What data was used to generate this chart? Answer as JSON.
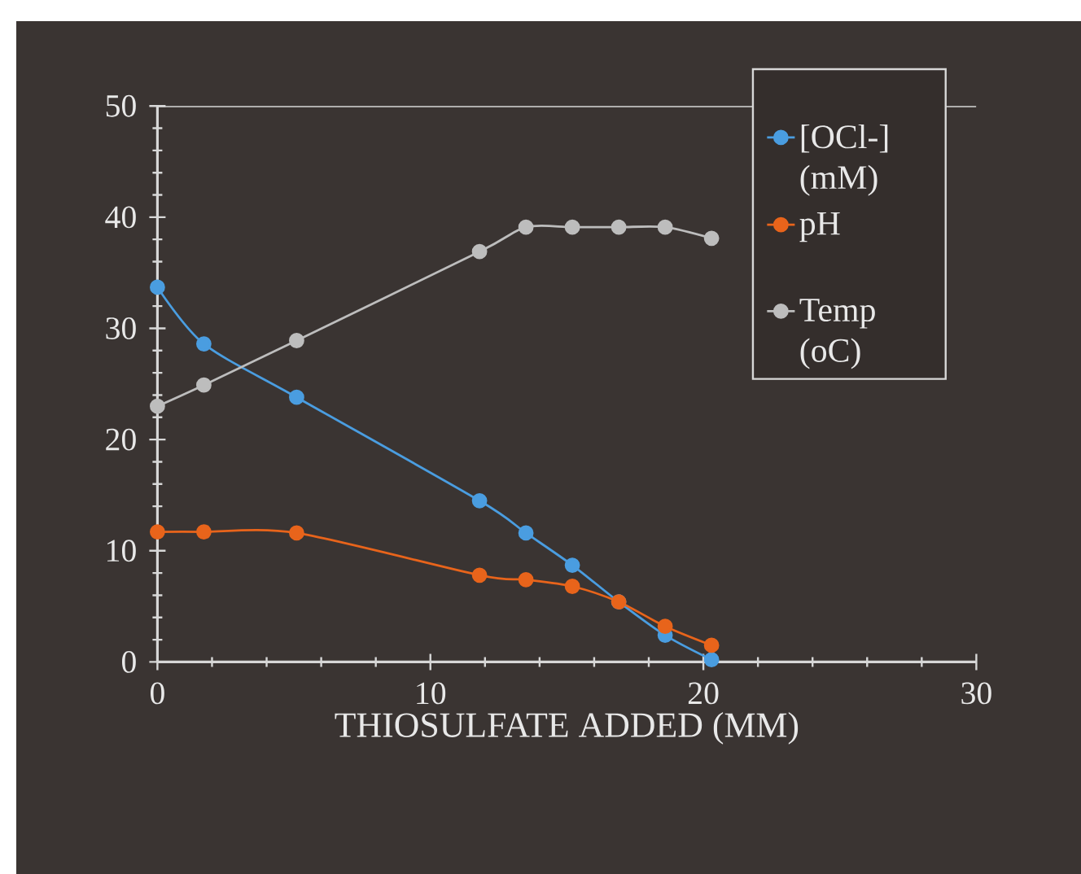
{
  "chart_data": {
    "type": "line",
    "xlabel": "THIOSULFATE ADDED (MM)",
    "x": [
      0,
      1.7,
      5.1,
      11.8,
      13.5,
      15.2,
      16.9,
      18.6,
      20.3
    ],
    "series": [
      {
        "name": "[OCl-] (mM)",
        "color": "#4a9de0",
        "values": [
          33.7,
          28.6,
          23.8,
          14.5,
          11.6,
          8.7,
          5.4,
          2.4,
          0.2
        ]
      },
      {
        "name": "pH",
        "color": "#e8641b",
        "values": [
          11.7,
          11.7,
          11.6,
          7.8,
          7.4,
          6.8,
          5.4,
          3.2,
          1.5
        ]
      },
      {
        "name": "Temp (oC)",
        "color": "#bdbdbd",
        "values": [
          23.0,
          24.9,
          28.9,
          36.9,
          39.1,
          39.1,
          39.1,
          39.1,
          38.1
        ]
      }
    ],
    "xlim": [
      0,
      30
    ],
    "xticks": [
      0,
      10,
      20,
      30
    ],
    "ylim": [
      0,
      50
    ],
    "yticks": [
      0,
      10,
      20,
      30,
      40,
      50
    ],
    "marker": "circle",
    "line_style": "solid",
    "legend": "top right",
    "grid": false
  }
}
